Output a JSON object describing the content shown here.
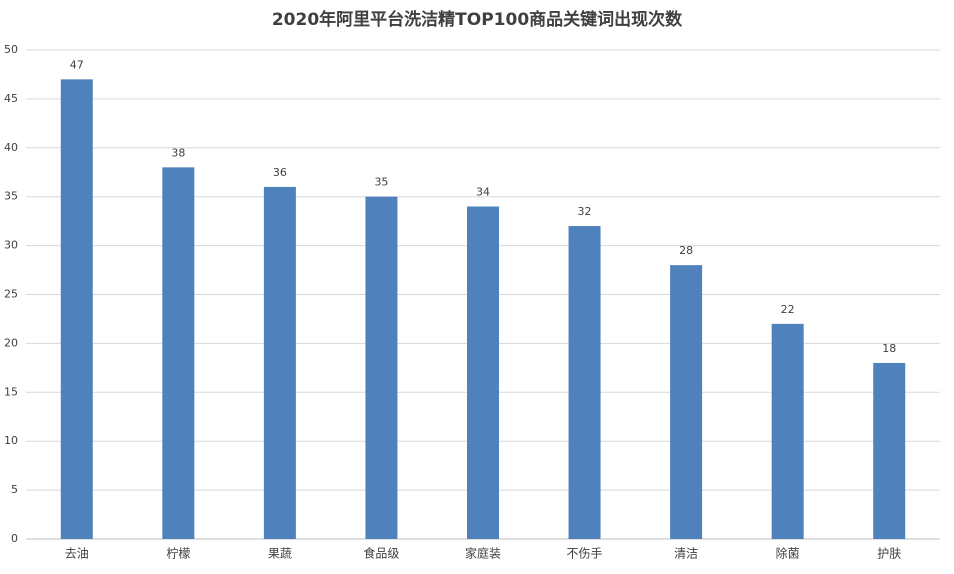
{
  "chart_data": {
    "type": "bar",
    "title": "2020年阿里平台洗洁精TOP100商品关键词出现次数",
    "categories": [
      "去油",
      "柠檬",
      "果蔬",
      "食品级",
      "家庭装",
      "不伤手",
      "清洁",
      "除菌",
      "护肤"
    ],
    "values": [
      47,
      38,
      36,
      35,
      34,
      32,
      28,
      22,
      18
    ],
    "color": "#4f81bd",
    "ylim": [
      0,
      50
    ],
    "yticks": [
      0,
      5,
      10,
      15,
      20,
      25,
      30,
      35,
      40,
      45,
      50
    ],
    "grid": true,
    "data_labels": true
  }
}
